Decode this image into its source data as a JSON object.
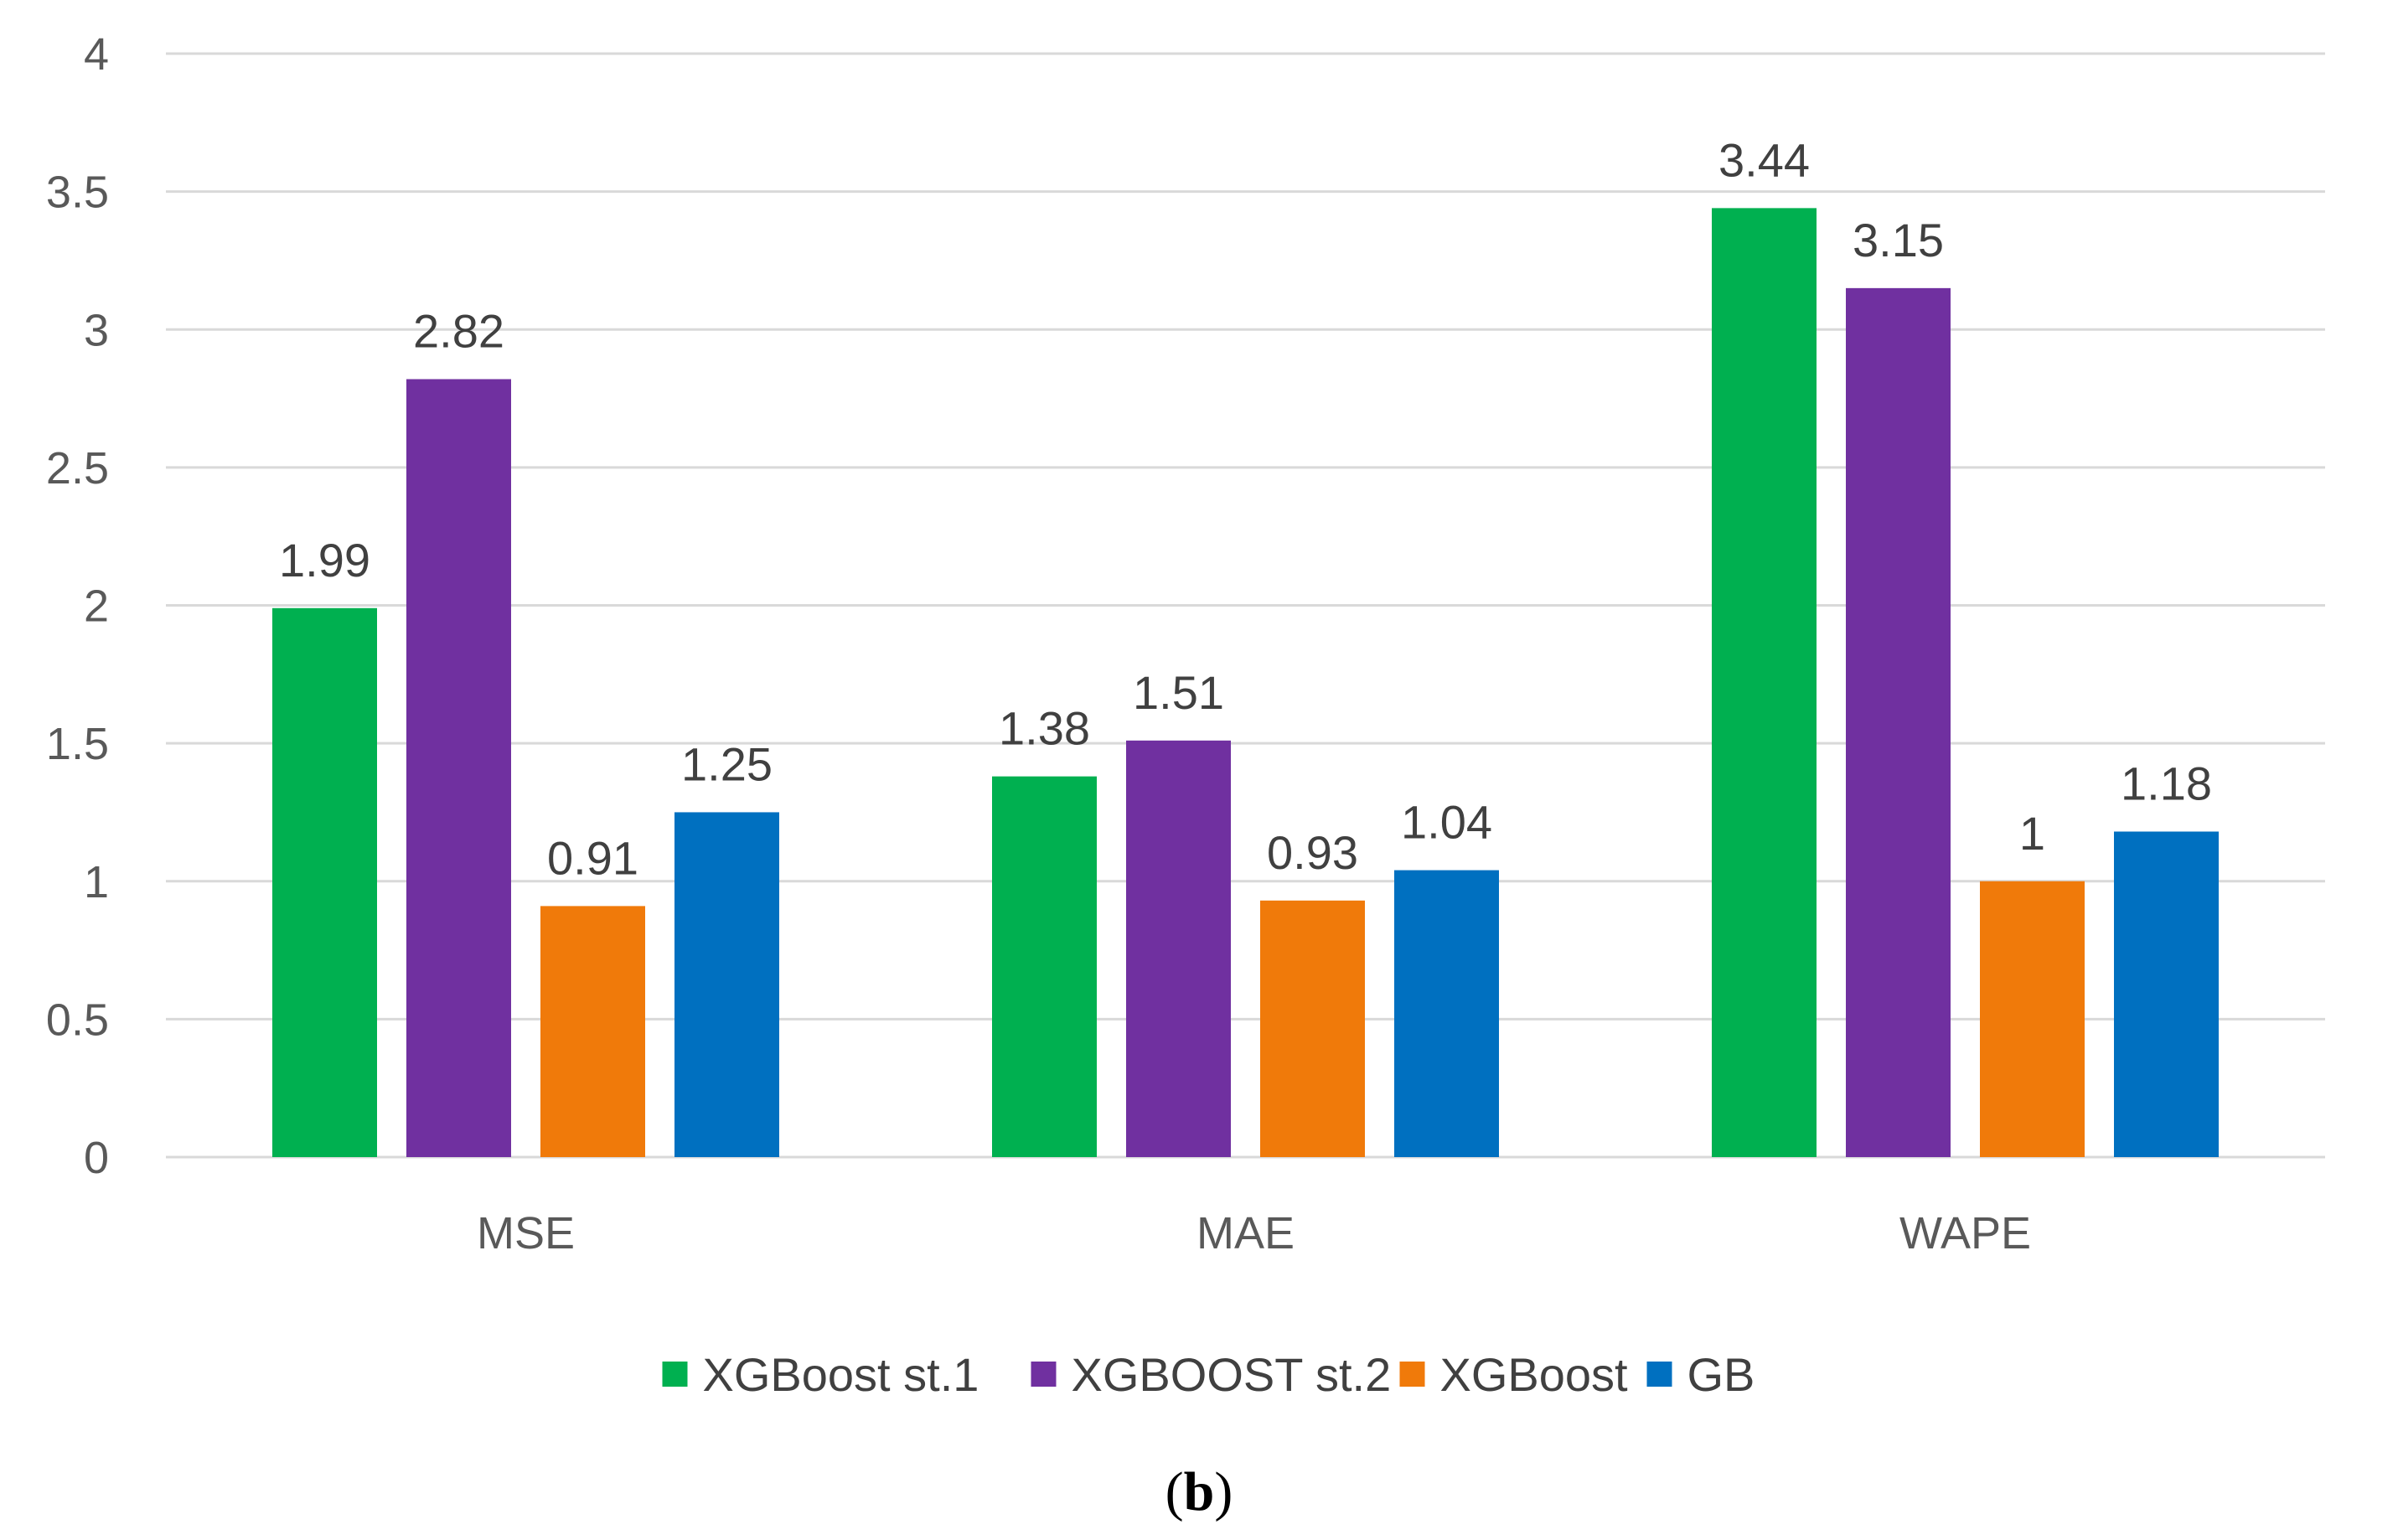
{
  "chart_data": {
    "type": "bar",
    "title": "",
    "xlabel": "",
    "ylabel": "",
    "categories": [
      "MSE",
      "MAE",
      "WAPE"
    ],
    "series": [
      {
        "name": "XGBoost st.1",
        "color": "#00b050",
        "values": [
          1.99,
          1.38,
          3.44
        ]
      },
      {
        "name": "XGBOOST st.2",
        "color": "#7030a0",
        "values": [
          2.82,
          1.51,
          3.15
        ]
      },
      {
        "name": "XGBoost",
        "color": "#f07a0a",
        "values": [
          0.91,
          0.93,
          1
        ]
      },
      {
        "name": "GB",
        "color": "#0070c0",
        "values": [
          1.25,
          1.04,
          1.18
        ]
      }
    ],
    "ylim": [
      0,
      4
    ],
    "yticks": [
      "0",
      "0.5",
      "1",
      "1.5",
      "2",
      "2.5",
      "3",
      "3.5",
      "4"
    ],
    "grid": true,
    "legend_position": "bottom"
  },
  "caption": {
    "open": "(",
    "bold": "b",
    "close": ")"
  },
  "colors": {
    "gridline": "#d9d9d9",
    "axis_text": "#595959"
  }
}
